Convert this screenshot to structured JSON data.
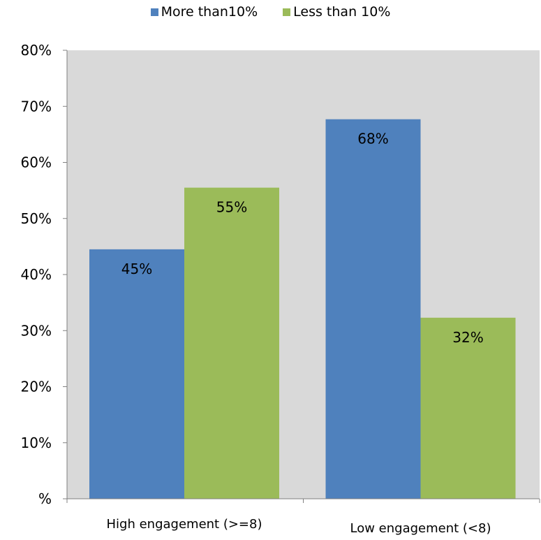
{
  "chart_data": {
    "type": "bar",
    "categories": [
      "High engagement (>=8)",
      "Low engagement (<8)"
    ],
    "series": [
      {
        "name": "More than10%",
        "values": [
          0.445,
          0.677
        ],
        "labels": [
          "45%",
          "68%"
        ],
        "color": "#4F81BD"
      },
      {
        "name": "Less than 10%",
        "values": [
          0.555,
          0.323
        ],
        "labels": [
          "55%",
          "32%"
        ],
        "color": "#9BBB59"
      }
    ],
    "ylim": [
      0,
      0.8
    ],
    "yticks": [
      0,
      0.1,
      0.2,
      0.3,
      0.4,
      0.5,
      0.6,
      0.7,
      0.8
    ],
    "ytick_labels": [
      "%",
      "10%",
      "20%",
      "30%",
      "40%",
      "50%",
      "60%",
      "70%",
      "80%"
    ],
    "plot_background": "#D9D9D9",
    "grid": false,
    "legend_position": "top-center"
  }
}
